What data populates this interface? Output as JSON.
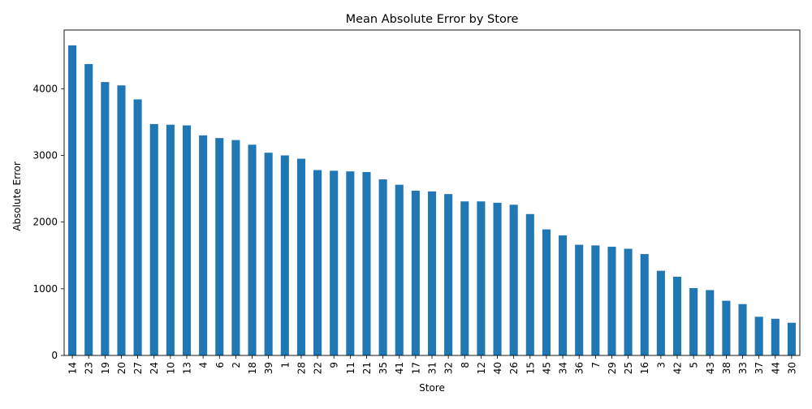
{
  "chart_data": {
    "type": "bar",
    "title": "Mean Absolute Error by Store",
    "xlabel": "Store",
    "ylabel": "Absolute Error",
    "ylim": [
      0,
      4880
    ],
    "yticks": [
      0,
      1000,
      2000,
      3000,
      4000
    ],
    "ytick_labels": [
      "0",
      "1000",
      "2000",
      "3000",
      "4000"
    ],
    "grid": false,
    "legend": "none",
    "bar_color": "#1f77b4",
    "categories": [
      "14",
      "23",
      "19",
      "20",
      "27",
      "24",
      "10",
      "13",
      "4",
      "6",
      "2",
      "18",
      "39",
      "1",
      "28",
      "22",
      "9",
      "11",
      "21",
      "35",
      "41",
      "17",
      "31",
      "32",
      "8",
      "12",
      "40",
      "26",
      "15",
      "45",
      "34",
      "36",
      "7",
      "29",
      "25",
      "16",
      "3",
      "42",
      "5",
      "43",
      "38",
      "33",
      "37",
      "44",
      "30"
    ],
    "values": [
      4650,
      4370,
      4100,
      4050,
      3840,
      3470,
      3460,
      3450,
      3300,
      3260,
      3230,
      3160,
      3040,
      3000,
      2950,
      2780,
      2770,
      2760,
      2750,
      2640,
      2560,
      2470,
      2460,
      2420,
      2310,
      2310,
      2290,
      2260,
      2120,
      1890,
      1800,
      1660,
      1650,
      1630,
      1600,
      1520,
      1270,
      1180,
      1010,
      980,
      820,
      770,
      580,
      550,
      490
    ]
  }
}
